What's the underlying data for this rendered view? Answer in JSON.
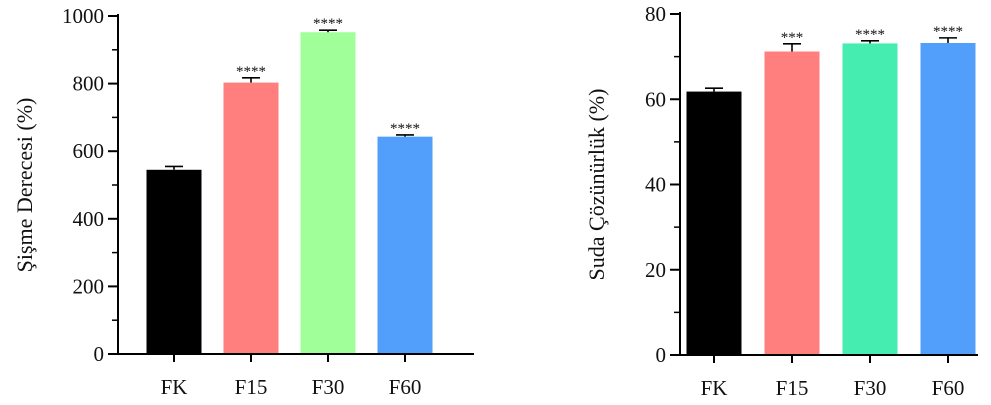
{
  "chart_data": [
    {
      "type": "bar",
      "categories": [
        "FK",
        "F15",
        "F30",
        "F60"
      ],
      "values": [
        545,
        803,
        952,
        643
      ],
      "errors": [
        10,
        14,
        6,
        5
      ],
      "significance": [
        "",
        "****",
        "****",
        "****"
      ],
      "colors": [
        "#000000",
        "#ff7f7f",
        "#a0ff98",
        "#519ffa"
      ],
      "ylabel": "Şişme Derecesi (%)",
      "xlabel": "",
      "ylim": [
        0,
        1000
      ],
      "yticks": [
        0,
        200,
        400,
        600,
        800,
        1000
      ],
      "grid": false
    },
    {
      "type": "bar",
      "categories": [
        "FK",
        "F15",
        "F30",
        "F60"
      ],
      "values": [
        61.8,
        71.2,
        73.1,
        73.2
      ],
      "errors": [
        0.8,
        1.8,
        0.6,
        1.2
      ],
      "significance": [
        "",
        "***",
        "****",
        "****"
      ],
      "colors": [
        "#000000",
        "#ff7f7f",
        "#45edb0",
        "#519ffa"
      ],
      "ylabel": "Suda Çözünürlük (%)",
      "xlabel": "",
      "ylim": [
        0,
        80
      ],
      "yticks": [
        0,
        20,
        40,
        60,
        80
      ],
      "grid": false
    }
  ]
}
